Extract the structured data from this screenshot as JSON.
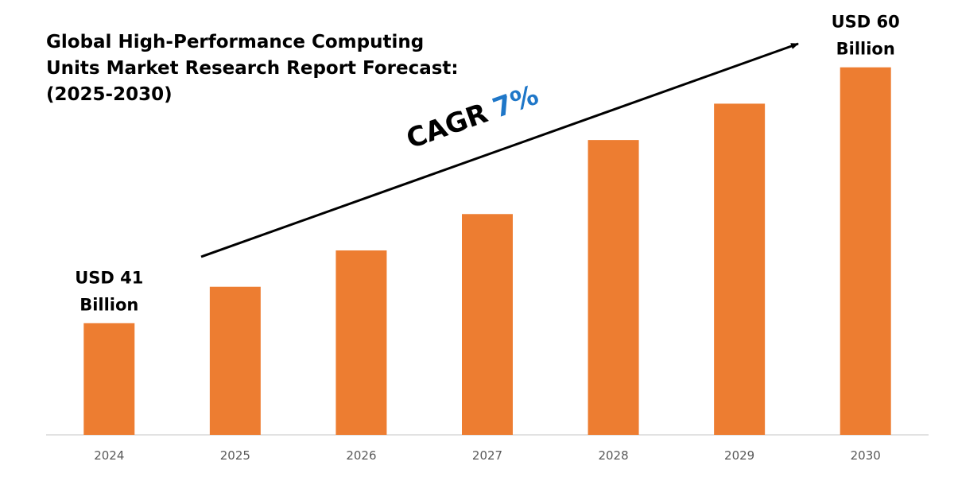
{
  "chart_data": {
    "type": "bar",
    "title": "Global High-Performance Computing\nUnits Market Research Report Forecast:\n(2025-2030)",
    "categories": [
      "2024",
      "2025",
      "2026",
      "2027",
      "2028",
      "2029",
      "2030"
    ],
    "values": [
      41,
      43.7,
      46.4,
      49.1,
      54.6,
      57.3,
      60
    ],
    "value_labels": [
      "USD 41\nBillion",
      null,
      null,
      null,
      null,
      null,
      "USD 60\nBillion"
    ],
    "color": "#ed7d31",
    "ylim": [
      32.7,
      65
    ],
    "cagr_label": "CAGR",
    "cagr_value": "7%",
    "cagr_value_color": "#1f77c8"
  }
}
